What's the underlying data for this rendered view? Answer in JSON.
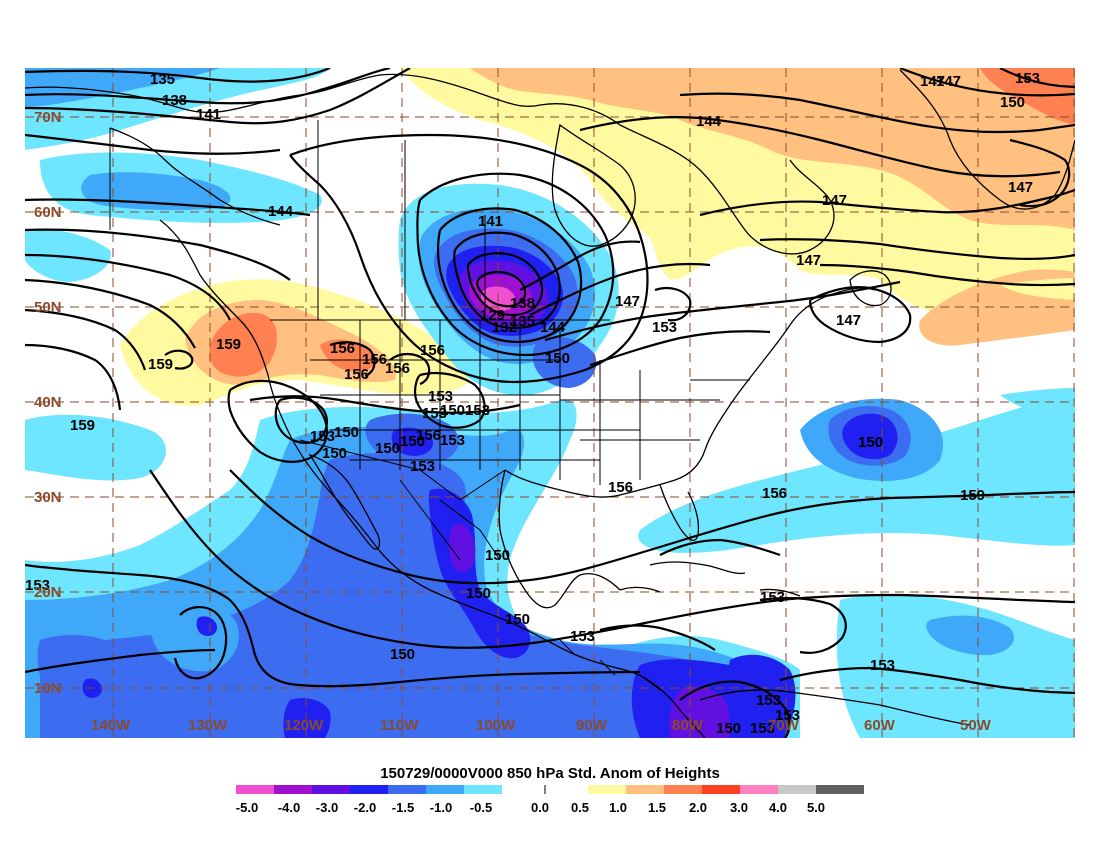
{
  "title": "150729/0000V000 850 hPa Std. Anom of Heights",
  "colors": {
    "neg50": "#f050d0",
    "neg40": "#a010d0",
    "neg30": "#6010e0",
    "neg20": "#2020f0",
    "neg15": "#3c6cf0",
    "neg10": "#40a8f8",
    "neg05": "#6ee6ff",
    "zero": "#ffffff",
    "pos05": "#fffaa0",
    "pos10": "#ffc080",
    "pos15": "#ff8050",
    "pos20": "#ff4020",
    "pos30": "#e81010",
    "pos40": "#ff80c0",
    "pos50": "#c8c8c8",
    "pos60": "#606060",
    "grid": "#8b4a2b"
  },
  "colorbar": {
    "ticks": [
      "-5.0",
      "-4.0",
      "-3.0",
      "-2.0",
      "-1.5",
      "-1.0",
      "-0.5",
      "0.0",
      "0.5",
      "1.0",
      "1.5",
      "2.0",
      "3.0",
      "4.0",
      "5.0"
    ]
  },
  "lat_labels": [
    "70N",
    "60N",
    "50N",
    "40N",
    "30N",
    "20N",
    "10N"
  ],
  "lon_labels": [
    "140W",
    "130W",
    "120W",
    "110W",
    "100W",
    "90W",
    "80W",
    "70W",
    "60W",
    "50W"
  ],
  "contour_labels": [
    {
      "text": "135"
    },
    {
      "text": "138"
    },
    {
      "text": "141"
    },
    {
      "text": "144"
    },
    {
      "text": "141"
    },
    {
      "text": "129"
    },
    {
      "text": "132"
    },
    {
      "text": "135"
    },
    {
      "text": "138"
    },
    {
      "text": "144"
    },
    {
      "text": "147"
    },
    {
      "text": "150"
    },
    {
      "text": "153"
    },
    {
      "text": "147"
    },
    {
      "text": "147"
    },
    {
      "text": "147"
    },
    {
      "text": "147"
    },
    {
      "text": "144"
    },
    {
      "text": "147"
    },
    {
      "text": "150"
    },
    {
      "text": "153"
    },
    {
      "text": "147"
    },
    {
      "text": "159"
    },
    {
      "text": "159"
    },
    {
      "text": "156"
    },
    {
      "text": "156"
    },
    {
      "text": "156"
    },
    {
      "text": "156"
    },
    {
      "text": "159"
    },
    {
      "text": "153"
    },
    {
      "text": "153"
    },
    {
      "text": "150"
    },
    {
      "text": "153"
    },
    {
      "text": "153"
    },
    {
      "text": "150"
    },
    {
      "text": "150"
    },
    {
      "text": "150"
    },
    {
      "text": "153"
    },
    {
      "text": "156"
    },
    {
      "text": "150"
    },
    {
      "text": "150"
    },
    {
      "text": "150"
    },
    {
      "text": "153"
    },
    {
      "text": "150"
    },
    {
      "text": "156"
    },
    {
      "text": "159"
    },
    {
      "text": "153"
    },
    {
      "text": "150"
    },
    {
      "text": "153"
    },
    {
      "text": "153"
    },
    {
      "text": "150"
    },
    {
      "text": "153"
    },
    {
      "text": "153"
    },
    {
      "text": "156"
    },
    {
      "text": "153"
    },
    {
      "text": "150"
    },
    {
      "text": "156"
    },
    {
      "text": "153"
    }
  ]
}
